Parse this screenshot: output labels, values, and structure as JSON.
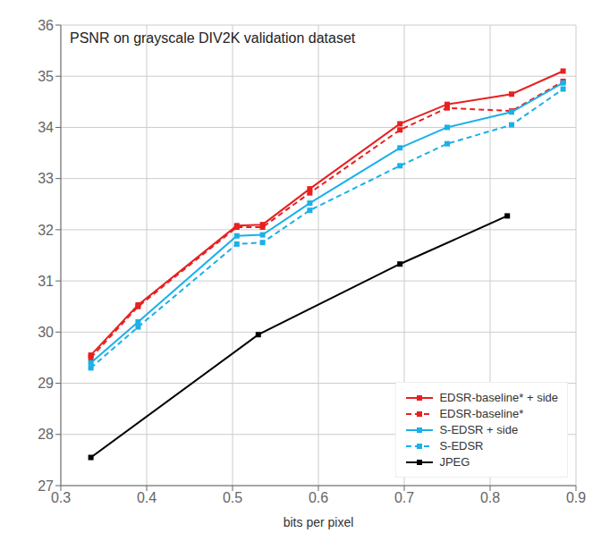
{
  "chart_data": {
    "type": "line",
    "title": "PSNR on grayscale DIV2K validation dataset",
    "x_label": "bits per pixel",
    "xlim": [
      0.3,
      0.9
    ],
    "ylim": [
      27,
      36
    ],
    "xticks": [
      0.3,
      0.4,
      0.5,
      0.6,
      0.7,
      0.8,
      0.9
    ],
    "yticks": [
      27,
      28,
      29,
      30,
      31,
      32,
      33,
      34,
      35,
      36
    ],
    "grid": true,
    "legend": "lower right",
    "series": [
      {
        "name": "EDSR-baseline* + side",
        "color": "#e82020",
        "line_style": "solid",
        "marker": "square",
        "x": [
          0.335,
          0.39,
          0.505,
          0.535,
          0.59,
          0.695,
          0.75,
          0.825,
          0.885
        ],
        "values": [
          29.55,
          30.53,
          32.08,
          32.1,
          32.8,
          34.07,
          34.45,
          34.65,
          35.1
        ]
      },
      {
        "name": "EDSR-baseline*",
        "color": "#e82020",
        "line_style": "dashed",
        "marker": "square",
        "x": [
          0.335,
          0.39,
          0.505,
          0.535,
          0.59,
          0.695,
          0.75,
          0.825,
          0.885
        ],
        "values": [
          29.5,
          30.5,
          32.05,
          32.05,
          32.72,
          33.95,
          34.38,
          34.32,
          34.9
        ]
      },
      {
        "name": "S-EDSR + side",
        "color": "#1ab0e8",
        "line_style": "solid",
        "marker": "square",
        "x": [
          0.335,
          0.39,
          0.505,
          0.535,
          0.59,
          0.695,
          0.75,
          0.825,
          0.885
        ],
        "values": [
          29.4,
          30.2,
          31.88,
          31.9,
          32.52,
          33.6,
          34.0,
          34.3,
          34.87
        ]
      },
      {
        "name": "S-EDSR",
        "color": "#1ab0e8",
        "line_style": "dashed",
        "marker": "square",
        "x": [
          0.335,
          0.39,
          0.505,
          0.535,
          0.59,
          0.695,
          0.75,
          0.825,
          0.885
        ],
        "values": [
          29.3,
          30.1,
          31.72,
          31.75,
          32.38,
          33.25,
          33.68,
          34.05,
          34.75
        ]
      },
      {
        "name": "JPEG",
        "color": "#000000",
        "line_style": "solid",
        "marker": "square",
        "x": [
          0.335,
          0.53,
          0.695,
          0.82
        ],
        "values": [
          27.55,
          29.95,
          31.33,
          32.27
        ]
      }
    ]
  }
}
